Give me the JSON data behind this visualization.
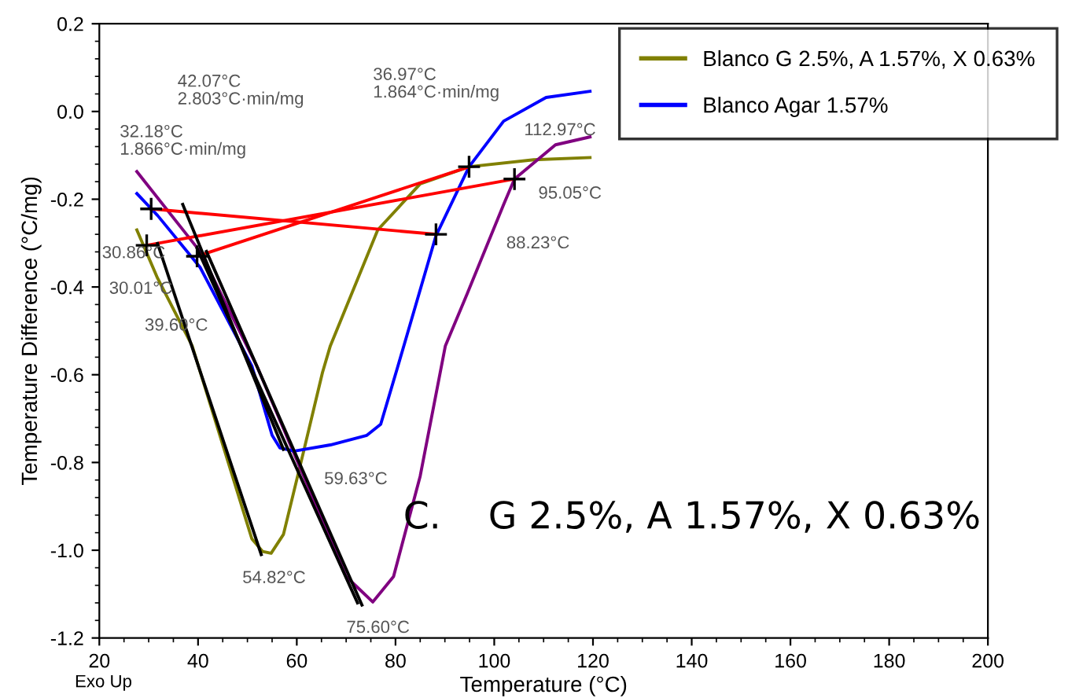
{
  "chart_data": {
    "type": "line",
    "xlabel": "Temperature (°C)",
    "ylabel": "Temperature Difference (°C/mg)",
    "xlim": [
      20,
      200
    ],
    "xticks": [
      20,
      40,
      60,
      80,
      100,
      120,
      140,
      160,
      180,
      200
    ],
    "ylim": [
      -1.2,
      0.2
    ],
    "yticks": [
      {
        "value": -1.2,
        "label": "-1.2"
      },
      {
        "value": -1.0,
        "label": "-1.0"
      },
      {
        "value": -0.8,
        "label": "-0.8"
      },
      {
        "value": -0.6,
        "label": "-0.6"
      },
      {
        "value": -0.4,
        "label": "-0.4"
      },
      {
        "value": -0.2,
        "label": "-0.2"
      },
      {
        "value": 0.0,
        "label": "0.0"
      },
      {
        "value": 0.2,
        "label": "0.2"
      }
    ],
    "grid": false,
    "legend": "top right",
    "series": [
      {
        "name": "Blanco G 2.5%, A 1.57%, X 0.63%",
        "color": "#808000",
        "x": [
          27.6,
          31.8,
          38.8,
          50.9,
          53.1,
          54.8,
          57.3,
          61.4,
          65.2,
          66.8,
          76.4,
          85,
          94.9,
          108,
          119.4
        ],
        "values": [
          -0.27,
          -0.38,
          -0.534,
          -0.974,
          -1.003,
          -1.007,
          -0.964,
          -0.774,
          -0.595,
          -0.534,
          -0.27,
          -0.165,
          -0.126,
          -0.11,
          -0.105
        ]
      },
      {
        "color": "#800080",
        "x": [
          27.6,
          40.4,
          51.9,
          61.4,
          70,
          75.4,
          79.6,
          85,
          90.1,
          94.5,
          101.9,
          104.1,
          112.4,
          119.4
        ],
        "values": [
          -0.137,
          -0.319,
          -0.58,
          -0.831,
          -1.06,
          -1.118,
          -1.06,
          -0.831,
          -0.534,
          -0.416,
          -0.212,
          -0.154,
          -0.076,
          -0.058
        ]
      },
      {
        "name": "Blanco Agar 1.57%",
        "color": "#0000ff",
        "x": [
          27.6,
          31.8,
          40.4,
          50.9,
          55,
          56.6,
          59.5,
          66.8,
          74.2,
          77,
          80.5,
          88.2,
          94.9,
          101.9,
          110.5,
          119.4
        ],
        "values": [
          -0.187,
          -0.237,
          -0.355,
          -0.58,
          -0.738,
          -0.767,
          -0.774,
          -0.76,
          -0.738,
          -0.713,
          -0.58,
          -0.283,
          -0.126,
          -0.022,
          0.032,
          0.046
        ]
      },
      {
        "color": "#ff0000",
        "marker": "cross",
        "x": [
          30.5,
          88.2
        ],
        "values": [
          -0.222,
          -0.28
        ]
      },
      {
        "color": "#ff0000",
        "marker": "cross",
        "x": [
          29.6,
          104.1
        ],
        "values": [
          -0.305,
          -0.154
        ]
      },
      {
        "color": "#ff0000",
        "marker": "cross",
        "x": [
          39.8,
          94.9
        ],
        "values": [
          -0.33,
          -0.126
        ]
      },
      {
        "color": "#000000",
        "x": [
          31.8,
          52.8
        ],
        "values": [
          -0.301,
          -1.01
        ]
      },
      {
        "color": "#000000",
        "x": [
          36.9,
          57.3
        ],
        "values": [
          -0.212,
          -0.77
        ]
      },
      {
        "color": "#000000",
        "x": [
          39.8,
          72.3
        ],
        "values": [
          -0.312,
          -1.12
        ]
      },
      {
        "color": "#000000",
        "x": [
          41.7,
          73.2
        ],
        "values": [
          -0.319,
          -1.125
        ]
      }
    ],
    "annotations": [
      "42.07°C\n2.803°C·min/mg",
      "32.18°C\n1.866°C·min/mg",
      "36.97°C\n1.864°C·min/mg",
      "112.97°C",
      "95.05°C",
      "88.23°C",
      "30.86°C",
      "30.01°C",
      "39.60°C",
      "59.63°C",
      "54.82°C",
      "75.60°C",
      "C.    G 2.5%, A 1.57%, X 0.63%",
      "Exo Up"
    ]
  }
}
